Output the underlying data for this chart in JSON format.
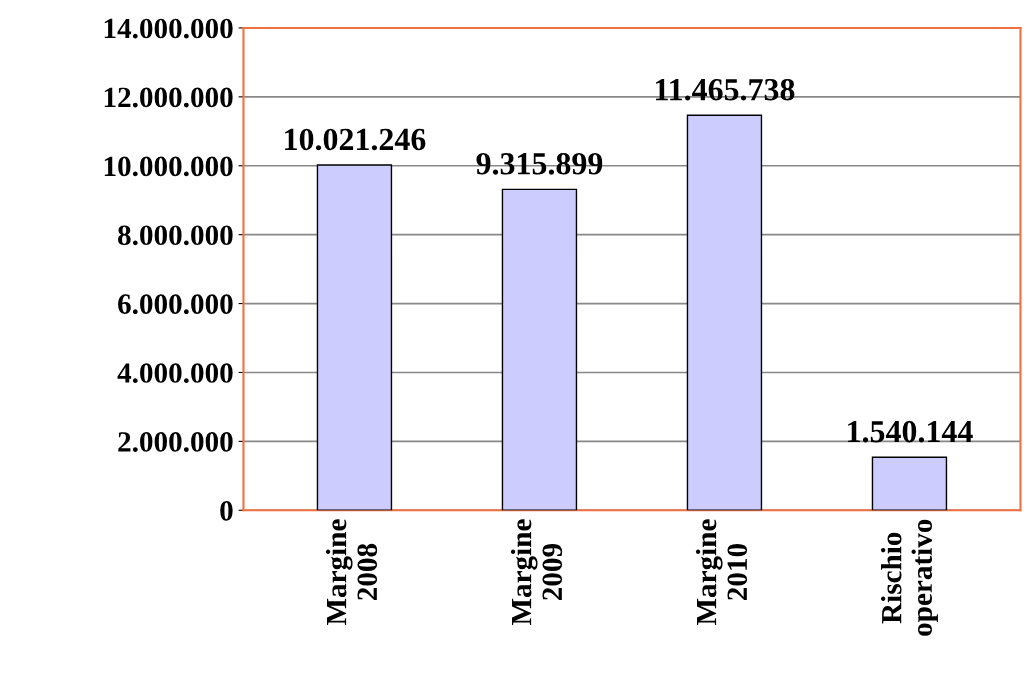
{
  "chart_data": {
    "type": "bar",
    "categories": [
      "Margine\n2008",
      "Margine\n2009",
      "Margine\n2010",
      "Rischio\noperativo"
    ],
    "values": [
      10021246,
      9315899,
      11465738,
      1540144
    ],
    "value_labels": [
      "10.021.246",
      "9.315.899",
      "11.465.738",
      "1.540.144"
    ],
    "color": "#ccccff",
    "ylim": [
      0,
      14000000
    ],
    "yticks": [
      {
        "value": 0,
        "label": "0"
      },
      {
        "value": 2000000,
        "label": "2.000.000"
      },
      {
        "value": 4000000,
        "label": "4.000.000"
      },
      {
        "value": 6000000,
        "label": "6.000.000"
      },
      {
        "value": 8000000,
        "label": "8.000.000"
      },
      {
        "value": 10000000,
        "label": "10.000.000"
      },
      {
        "value": 12000000,
        "label": "12.000.000"
      },
      {
        "value": 14000000,
        "label": "14.000.000"
      }
    ],
    "grid": "y"
  }
}
